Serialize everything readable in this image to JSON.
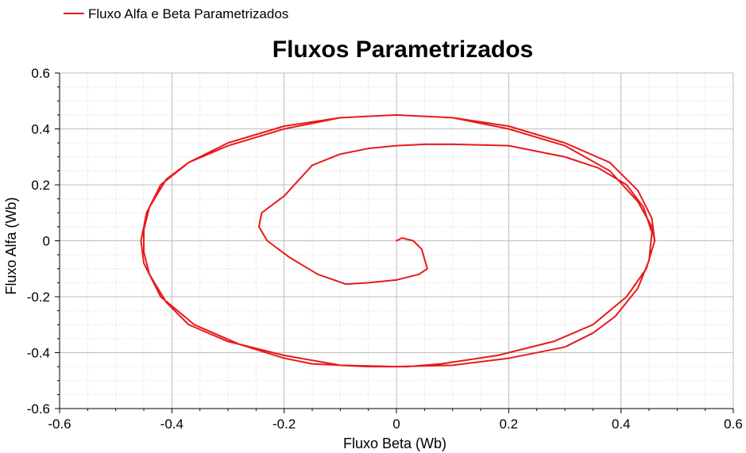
{
  "chart_data": {
    "type": "line",
    "title": "Fluxos Parametrizados",
    "xlabel": "Fluxo Beta (Wb)",
    "ylabel": "Fluxo Alfa (Wb)",
    "xlim": [
      -0.6,
      0.6
    ],
    "ylim": [
      -0.6,
      0.6
    ],
    "xticks": [
      -0.6,
      -0.4,
      -0.2,
      0,
      0.2,
      0.4,
      0.6
    ],
    "yticks": [
      -0.6,
      -0.4,
      -0.2,
      0,
      0.2,
      0.4,
      0.6
    ],
    "xtick_labels": [
      "-0.6",
      "-0.4",
      "-0.2",
      "0",
      "0.2",
      "0.4",
      "0.6"
    ],
    "ytick_labels": [
      "-0.6",
      "-0.4",
      "-0.2",
      "0",
      "0.2",
      "0.4",
      "0.6"
    ],
    "grid": true,
    "legend_position": "top-left",
    "series": [
      {
        "name": "Fluxo Alfa e Beta Parametrizados",
        "color": "#e8191c",
        "x": [
          0.0,
          0.01,
          0.03,
          0.045,
          0.055,
          0.04,
          0.0,
          -0.05,
          -0.09,
          -0.14,
          -0.19,
          -0.23,
          -0.245,
          -0.24,
          -0.2,
          -0.15,
          -0.1,
          -0.05,
          0.0,
          0.05,
          0.1,
          0.2,
          0.3,
          0.36,
          0.41,
          0.44,
          0.455,
          0.45,
          0.43,
          0.39,
          0.35,
          0.3,
          0.2,
          0.1,
          0.0,
          -0.1,
          -0.2,
          -0.3,
          -0.37,
          -0.41,
          -0.44,
          -0.45,
          -0.45,
          -0.44,
          -0.41,
          -0.37,
          -0.3,
          -0.2,
          -0.1,
          0.0,
          0.1,
          0.2,
          0.3,
          0.38,
          0.43,
          0.455,
          0.46,
          0.445,
          0.41,
          0.35,
          0.28,
          0.18,
          0.08,
          0.02,
          -0.05,
          -0.15,
          -0.2,
          -0.28,
          -0.36,
          -0.42,
          -0.45,
          -0.455,
          -0.445,
          -0.42,
          -0.37,
          -0.3,
          -0.2,
          -0.1,
          0.0,
          0.1,
          0.2,
          0.3,
          0.38,
          0.43,
          0.455,
          0.46
        ],
        "y": [
          0.0,
          0.01,
          0.0,
          -0.03,
          -0.1,
          -0.12,
          -0.14,
          -0.15,
          -0.155,
          -0.12,
          -0.06,
          0.0,
          0.05,
          0.1,
          0.16,
          0.27,
          0.31,
          0.33,
          0.34,
          0.345,
          0.345,
          0.34,
          0.3,
          0.26,
          0.2,
          0.12,
          0.03,
          -0.07,
          -0.17,
          -0.27,
          -0.33,
          -0.38,
          -0.42,
          -0.445,
          -0.45,
          -0.445,
          -0.41,
          -0.36,
          -0.3,
          -0.22,
          -0.12,
          -0.04,
          0.04,
          0.12,
          0.22,
          0.28,
          0.34,
          0.4,
          0.44,
          0.45,
          0.44,
          0.41,
          0.35,
          0.28,
          0.18,
          0.08,
          0.0,
          -0.1,
          -0.2,
          -0.3,
          -0.36,
          -0.41,
          -0.44,
          -0.45,
          -0.45,
          -0.44,
          -0.42,
          -0.37,
          -0.3,
          -0.2,
          -0.08,
          0.0,
          0.1,
          0.2,
          0.28,
          0.35,
          0.41,
          0.44,
          0.45,
          0.44,
          0.4,
          0.34,
          0.25,
          0.14,
          0.05,
          0.0
        ]
      }
    ]
  }
}
